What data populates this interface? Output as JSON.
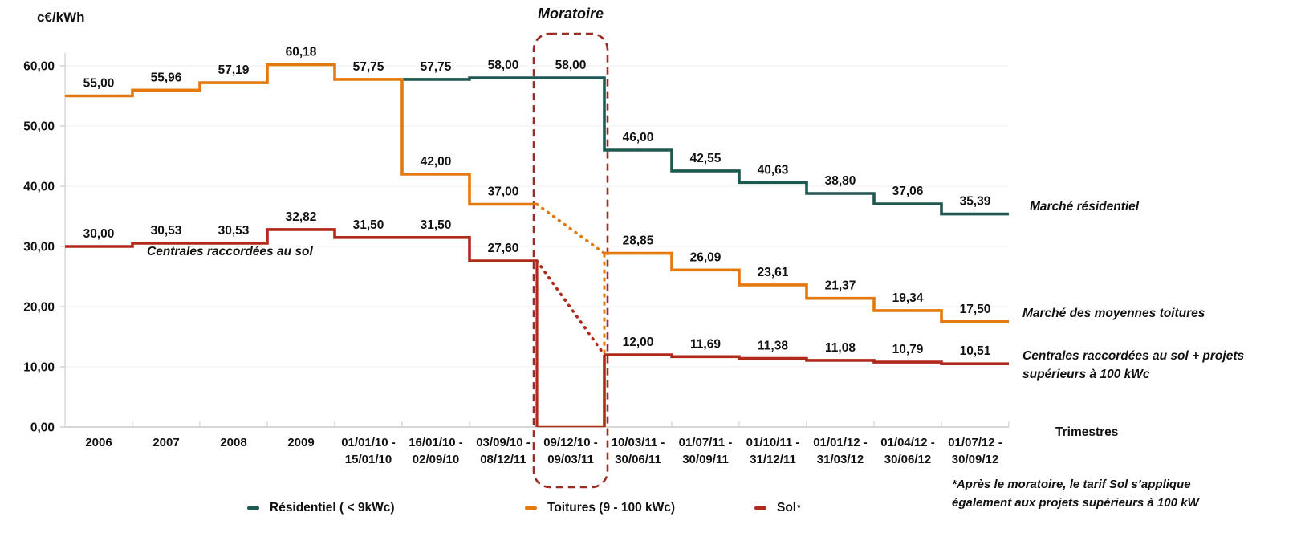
{
  "chart_data": {
    "type": "line",
    "subtype": "step",
    "title": "Moratoire",
    "y_axis": {
      "unit_label": "c€/kWh",
      "min": 0,
      "max": 60,
      "tick_values": [
        0,
        10,
        20,
        30,
        40,
        50,
        60
      ],
      "tick_labels": [
        "0,00",
        "10,00",
        "20,00",
        "30,00",
        "40,00",
        "50,00",
        "60,00"
      ]
    },
    "x_axis": {
      "axis_label": "Trimestres",
      "categories": [
        "2006",
        "2007",
        "2008",
        "2009",
        "01/01/10 - 15/01/10",
        "16/01/10 - 02/09/10",
        "03/09/10 - 08/12/11",
        "09/12/10 - 09/03/11",
        "10/03/11 - 30/06/11",
        "01/07/11 - 30/09/11",
        "01/10/11 - 31/12/11",
        "01/01/12 - 31/03/12",
        "01/04/12 - 30/06/12",
        "01/07/12 - 30/09/12"
      ]
    },
    "series": [
      {
        "name": "Résidentiel ( < 9kWc)",
        "color": "#1D5951",
        "values": [
          null,
          null,
          null,
          null,
          null,
          57.75,
          58.0,
          58.0,
          46.0,
          42.55,
          40.63,
          38.8,
          37.06,
          35.39
        ],
        "labels": [
          null,
          null,
          null,
          null,
          null,
          "57,75",
          "58,00",
          "58,00",
          "46,00",
          "42,55",
          "40,63",
          "38,80",
          "37,06",
          "35,39"
        ]
      },
      {
        "name": "Toitures (9 - 100 kWc)",
        "color": "#E4790F",
        "values": [
          55.0,
          55.96,
          57.19,
          60.18,
          57.75,
          42.0,
          37.0,
          null,
          28.85,
          26.09,
          23.61,
          21.37,
          19.34,
          17.5
        ],
        "labels": [
          "55,00",
          "55,96",
          "57,19",
          "60,18",
          "57,75",
          "42,00",
          "37,00",
          null,
          "28,85",
          "26,09",
          "23,61",
          "21,37",
          "19,34",
          "17,50"
        ]
      },
      {
        "name": "Sol",
        "color": "#B02A1B",
        "values": [
          30.0,
          30.53,
          30.53,
          32.82,
          31.5,
          31.5,
          27.6,
          null,
          12.0,
          11.69,
          11.38,
          11.08,
          10.79,
          10.51
        ],
        "labels": [
          "30,00",
          "30,53",
          "30,53",
          "32,82",
          "31,50",
          "31,50",
          "27,60",
          null,
          "12,00",
          "11,69",
          "11,38",
          "11,08",
          "10,79",
          "10,51"
        ]
      }
    ],
    "moratorium": {
      "title": "Moratoire",
      "category_index": 7,
      "box_color": "#9C2B22",
      "sol_zero_value": 0,
      "sol_drop": {
        "from": 27.6,
        "to": 0
      },
      "sol_rise": {
        "from": 0,
        "to": 12
      },
      "toitures_vertical": {
        "from": 28.85,
        "to": 12
      },
      "dotted_transitions": [
        {
          "series_index": 1,
          "from": 37.0,
          "to": 28.85
        },
        {
          "series_index": 2,
          "from": 27.6,
          "to": 12.0
        }
      ]
    }
  },
  "annotations": {
    "ground_pre": "Centrales raccordées au sol",
    "residential_market": "Marché résidentiel",
    "medium_roof_market": "Marché des moyennes toitures",
    "ground_post_lines": [
      "Centrales raccordées au sol + projets",
      "supérieurs à 100 kWc"
    ],
    "x_axis_label": "Trimestres"
  },
  "legend": {
    "items": [
      {
        "label": "Résidentiel ( < 9kWc)",
        "color": "#1D5951"
      },
      {
        "label": "Toitures (9 - 100 kWc)",
        "color": "#E4790F"
      },
      {
        "label": "Sol",
        "asterisk": "*",
        "color": "#B02A1B"
      }
    ]
  },
  "footnote": {
    "lines": [
      "*Après le moratoire, le tarif Sol s’applique",
      "également aux projets supérieurs à 100 kW"
    ]
  }
}
